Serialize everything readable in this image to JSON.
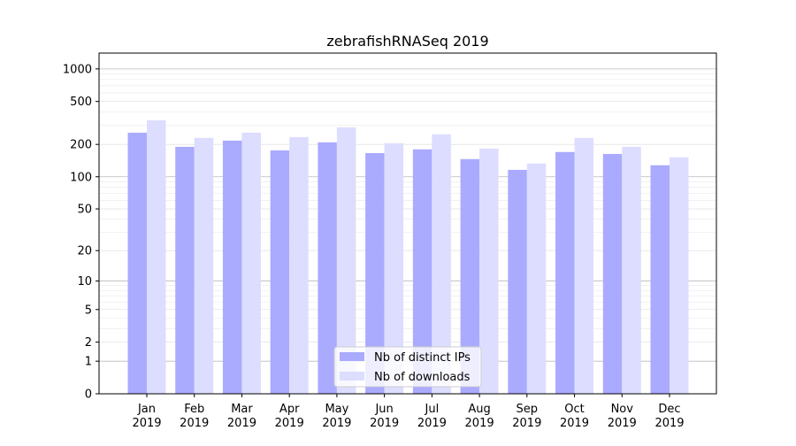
{
  "chart_data": {
    "type": "bar",
    "title": "zebrafishRNASeq 2019",
    "xlabel": "",
    "ylabel": "",
    "yscale": "log(1+y)",
    "ylim": [
      0,
      1400
    ],
    "yticks": [
      0,
      1,
      2,
      5,
      10,
      20,
      50,
      100,
      200,
      500,
      1000
    ],
    "grid": true,
    "legend_position": "bottom-center",
    "categories": [
      "Jan\n2019",
      "Feb\n2019",
      "Mar\n2019",
      "Apr\n2019",
      "May\n2019",
      "Jun\n2019",
      "Jul\n2019",
      "Aug\n2019",
      "Sep\n2019",
      "Oct\n2019",
      "Nov\n2019",
      "Dec\n2019"
    ],
    "series": [
      {
        "name": "Nb of distinct IPs",
        "color": "#aaaaff",
        "values": [
          257,
          190,
          217,
          176,
          209,
          166,
          180,
          146,
          116,
          170,
          163,
          128
        ]
      },
      {
        "name": "Nb of downloads",
        "color": "#ddddff",
        "values": [
          335,
          230,
          257,
          234,
          288,
          205,
          248,
          183,
          133,
          230,
          190,
          152
        ]
      }
    ]
  }
}
